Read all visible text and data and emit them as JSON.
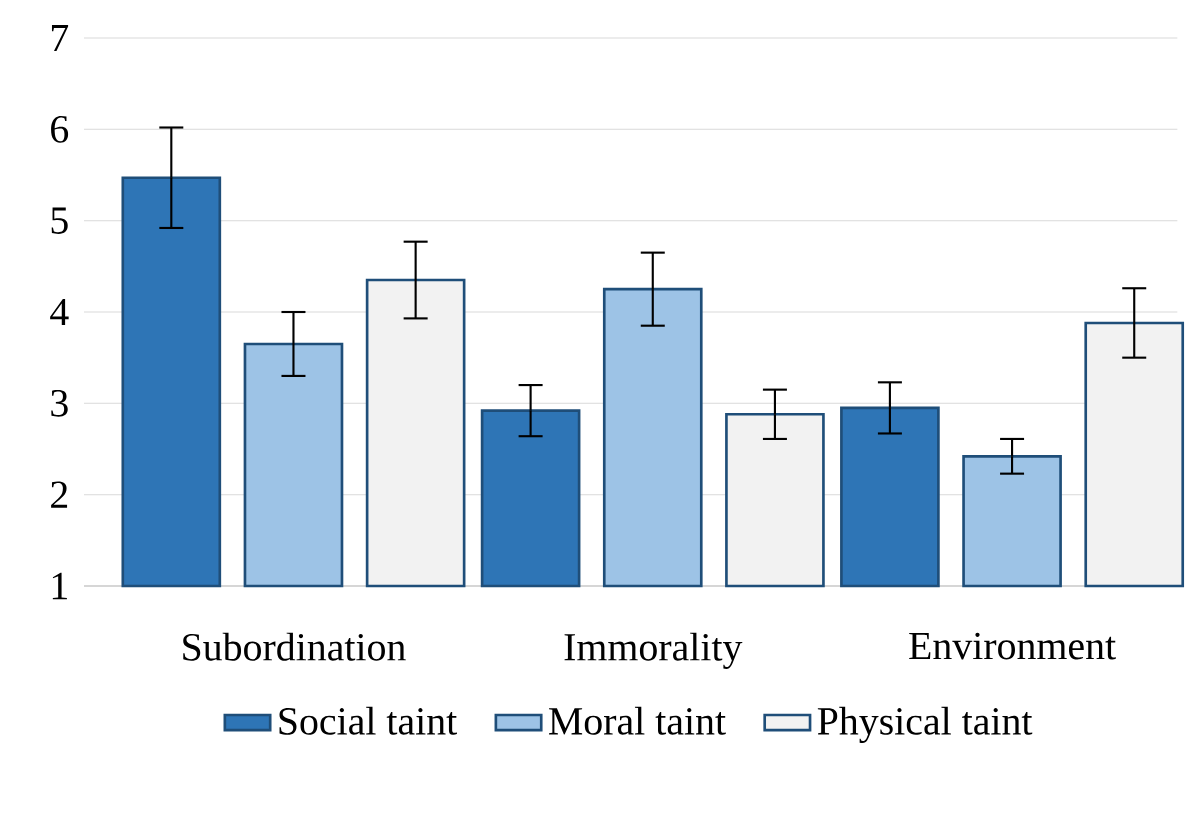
{
  "chart_data": {
    "type": "bar",
    "categories": [
      "Subordination",
      "Immorality",
      "Environment"
    ],
    "series": [
      {
        "name": "Social taint",
        "color": "#2e75b6",
        "values": [
          5.47,
          2.92,
          2.95
        ],
        "errors": [
          0.55,
          0.28,
          0.28
        ]
      },
      {
        "name": "Moral taint",
        "color": "#9dc3e6",
        "values": [
          3.65,
          4.25,
          2.42
        ],
        "errors": [
          0.35,
          0.4,
          0.19
        ]
      },
      {
        "name": "Physical taint",
        "color": "#f2f2f2",
        "values": [
          4.35,
          2.88,
          3.88
        ],
        "errors": [
          0.42,
          0.27,
          0.38
        ]
      }
    ],
    "ylim": [
      1,
      7
    ],
    "yticks": [
      1,
      2,
      3,
      4,
      5,
      6,
      7
    ],
    "grid": "y",
    "legend": "bottom"
  }
}
